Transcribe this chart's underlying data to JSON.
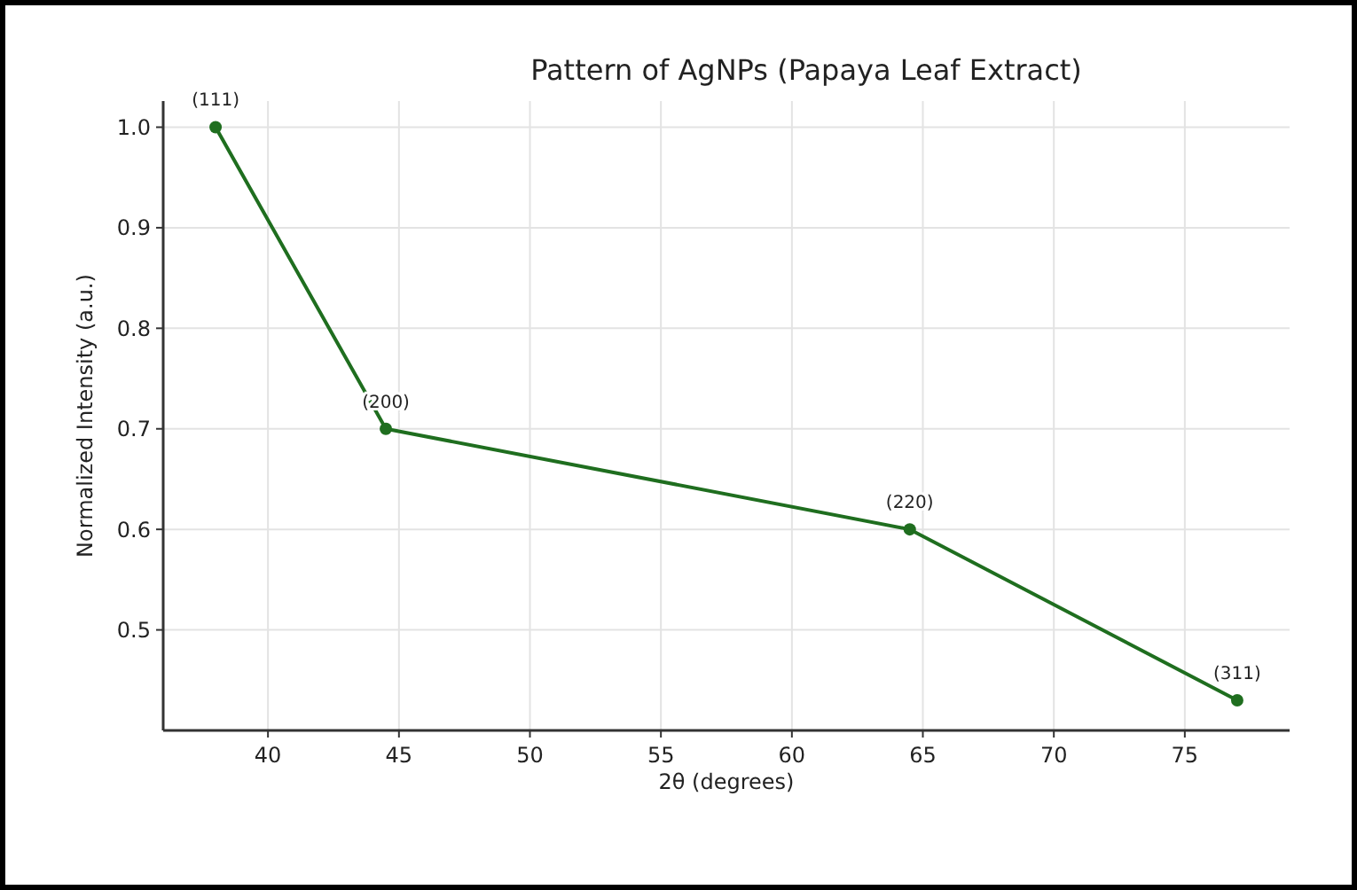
{
  "chart_data": {
    "type": "line",
    "title": "Pattern of AgNPs (Papaya Leaf Extract)",
    "xlabel": "2θ (degrees)",
    "ylabel": "Normalized Intensity (a.u.)",
    "x": [
      38.0,
      44.5,
      64.5,
      77.0
    ],
    "series": [
      {
        "color": "#1f6e1f",
        "values": [
          1.0,
          0.7,
          0.6,
          0.43
        ]
      }
    ],
    "annotations": [
      {
        "text": "(111)",
        "x": 38.0,
        "y": 1.0
      },
      {
        "text": "(200)",
        "x": 44.5,
        "y": 0.7
      },
      {
        "text": "(220)",
        "x": 64.5,
        "y": 0.6
      },
      {
        "text": "(311)",
        "x": 77.0,
        "y": 0.43
      }
    ],
    "xlim": [
      36,
      79
    ],
    "xticks": [
      40,
      45,
      50,
      55,
      60,
      65,
      70,
      75
    ],
    "ylim": [
      0.4,
      1.026
    ],
    "yticks": [
      0.5,
      0.6,
      0.7,
      0.8,
      0.9,
      {
        "value": 1.0,
        "label": "1.0"
      }
    ],
    "grid": true,
    "marker": "circle",
    "line_style": "solid"
  }
}
